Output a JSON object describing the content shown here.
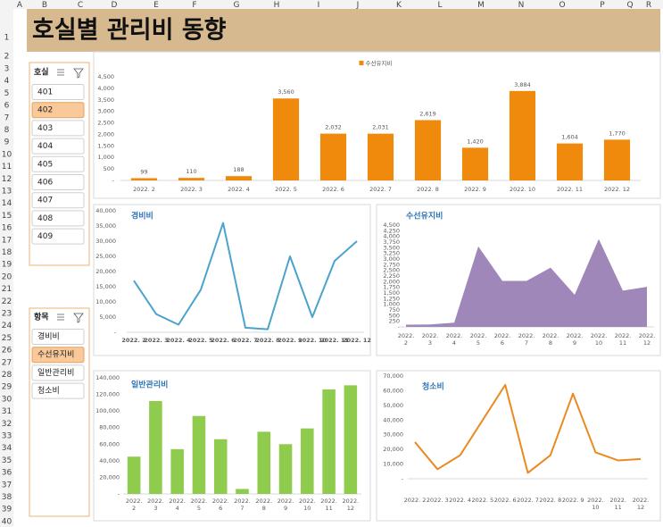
{
  "sheet": {
    "columns": [
      "A",
      "B",
      "C",
      "D",
      "E",
      "F",
      "G",
      "H",
      "I",
      "J",
      "K",
      "L",
      "M",
      "N",
      "O",
      "P",
      "Q",
      "R"
    ],
    "rows": [
      1,
      2,
      3,
      4,
      5,
      6,
      7,
      8,
      9,
      10,
      11,
      12,
      13,
      14,
      15,
      16,
      17,
      18,
      19,
      20,
      21,
      22,
      23,
      24,
      25,
      26,
      27,
      28,
      29,
      30,
      31,
      32,
      33,
      34,
      35,
      36,
      37,
      38,
      39,
      40
    ],
    "title": "호실별 관리비 동향"
  },
  "slicers": [
    {
      "title": "호실",
      "items": [
        "401",
        "402",
        "403",
        "404",
        "405",
        "406",
        "407",
        "408",
        "409"
      ],
      "selected": 1
    },
    {
      "title": "항목",
      "items": [
        "경비비",
        "수선유지비",
        "일반관리비",
        "청소비"
      ],
      "selected": 1
    }
  ],
  "chart_data": [
    {
      "type": "bar",
      "legend": "top",
      "categories": [
        "2022. 2",
        "2022. 3",
        "2022. 4",
        "2022. 5",
        "2022. 6",
        "2022. 7",
        "2022. 8",
        "2022. 9",
        "2022. 10",
        "2022. 11",
        "2022. 12"
      ],
      "series": [
        {
          "name": "수선유지비",
          "color": "#f08a0c",
          "values": [
            99,
            110,
            188,
            3560,
            2032,
            2031,
            2619,
            1420,
            3884,
            1604,
            1770
          ],
          "value_labels": [
            "99",
            "110",
            "188",
            "3,560",
            "2,032",
            "2,031",
            "2,619",
            "1,420",
            "3,884",
            "1,604",
            "1,770"
          ]
        }
      ],
      "ylim": [
        0,
        4500
      ],
      "yticks": [
        {
          "value": 0,
          "label": "-"
        },
        500,
        {
          "value": 1000,
          "label": "1,000"
        },
        {
          "value": 1500,
          "label": "1,500"
        },
        {
          "value": 2000,
          "label": "2,000"
        },
        {
          "value": 2500,
          "label": "2,500"
        },
        {
          "value": 3000,
          "label": "3,000"
        },
        {
          "value": 3500,
          "label": "3,500"
        },
        {
          "value": 4000,
          "label": "4,000"
        },
        {
          "value": 4500,
          "label": "4,500"
        }
      ]
    },
    {
      "type": "line",
      "title": "경비비",
      "color": "#4ba3cb",
      "categories": [
        "2022. 2",
        "2022. 3",
        "2022. 4",
        "2022. 5",
        "2022. 6",
        "2022. 7",
        "2022. 8",
        "2022. 9",
        "2022. 10",
        "2022. 11",
        "2022. 12"
      ],
      "values": [
        17000,
        6000,
        2500,
        14000,
        36000,
        1500,
        1000,
        25000,
        5000,
        23500,
        30000
      ],
      "ylim": [
        0,
        40000
      ],
      "yticks": [
        {
          "value": 0,
          "label": "-"
        },
        {
          "value": 5000,
          "label": "5,000"
        },
        {
          "value": 10000,
          "label": "10,000"
        },
        {
          "value": 15000,
          "label": "15,000"
        },
        {
          "value": 20000,
          "label": "20,000"
        },
        {
          "value": 25000,
          "label": "25,000"
        },
        {
          "value": 30000,
          "label": "30,000"
        },
        {
          "value": 35000,
          "label": "35,000"
        },
        {
          "value": 40000,
          "label": "40,000"
        }
      ]
    },
    {
      "type": "area",
      "title": "수선유지비",
      "color": "#9f87ba",
      "categories": [
        "2022. 2",
        "2022. 3",
        "2022. 4",
        "2022. 5",
        "2022. 6",
        "2022. 7",
        "2022. 8",
        "2022. 9",
        "2022. 10",
        "2022. 11",
        "2022. 12"
      ],
      "values": [
        99,
        110,
        188,
        3560,
        2032,
        2031,
        2619,
        1420,
        3884,
        1604,
        1770
      ],
      "ylim": [
        0,
        4500
      ],
      "yticks": [
        {
          "value": 0,
          "label": "-"
        },
        250,
        500,
        750,
        {
          "value": 1000,
          "label": "1,000"
        },
        {
          "value": 1250,
          "label": "1,250"
        },
        {
          "value": 1500,
          "label": "1,500"
        },
        {
          "value": 1750,
          "label": "1,750"
        },
        {
          "value": 2000,
          "label": "2,000"
        },
        {
          "value": 2250,
          "label": "2,250"
        },
        {
          "value": 2500,
          "label": "2,500"
        },
        {
          "value": 2750,
          "label": "2,750"
        },
        {
          "value": 3000,
          "label": "3,000"
        },
        {
          "value": 3250,
          "label": "3,250"
        },
        {
          "value": 3500,
          "label": "3,500"
        },
        {
          "value": 3750,
          "label": "3,750"
        },
        {
          "value": 4000,
          "label": "4,000"
        },
        {
          "value": 4250,
          "label": "4,250"
        },
        {
          "value": 4500,
          "label": "4,500"
        }
      ]
    },
    {
      "type": "bar",
      "title": "일반관리비",
      "color": "#8fcc4e",
      "categories": [
        "2022. 2",
        "2022. 3",
        "2022. 4",
        "2022. 5",
        "2022. 6",
        "2022. 7",
        "2022. 8",
        "2022. 9",
        "2022. 10",
        "2022. 11",
        "2022. 12"
      ],
      "values": [
        45000,
        112000,
        54000,
        94000,
        66000,
        6000,
        75000,
        60000,
        79000,
        126000,
        131000
      ],
      "ylim": [
        0,
        140000
      ],
      "yticks": [
        {
          "value": 0,
          "label": "-"
        },
        {
          "value": 20000,
          "label": "20,000"
        },
        {
          "value": 40000,
          "label": "40,000"
        },
        {
          "value": 60000,
          "label": "60,000"
        },
        {
          "value": 80000,
          "label": "80,000"
        },
        {
          "value": 100000,
          "label": "100,000"
        },
        {
          "value": 120000,
          "label": "120,000"
        },
        {
          "value": 140000,
          "label": "140,000"
        }
      ]
    },
    {
      "type": "line",
      "title": "청소비",
      "color": "#ea8a1f",
      "categories": [
        "2022. 2",
        "2022. 3",
        "2022. 4",
        "2022. 5",
        "2022. 6",
        "2022. 7",
        "2022. 8",
        "2022. 9",
        "2022. 10",
        "2022. 11",
        "2022. 12"
      ],
      "values": [
        25000,
        6500,
        16000,
        40000,
        64000,
        4000,
        16000,
        58000,
        18000,
        12500,
        13500
      ],
      "ylim": [
        0,
        70000
      ],
      "yticks": [
        {
          "value": 0,
          "label": "-"
        },
        {
          "value": 10000,
          "label": "10,000"
        },
        {
          "value": 20000,
          "label": "20,000"
        },
        {
          "value": 30000,
          "label": "30,000"
        },
        {
          "value": 40000,
          "label": "40,000"
        },
        {
          "value": 50000,
          "label": "50,000"
        },
        {
          "value": 60000,
          "label": "60,000"
        },
        {
          "value": 70000,
          "label": "70,000"
        }
      ]
    }
  ]
}
